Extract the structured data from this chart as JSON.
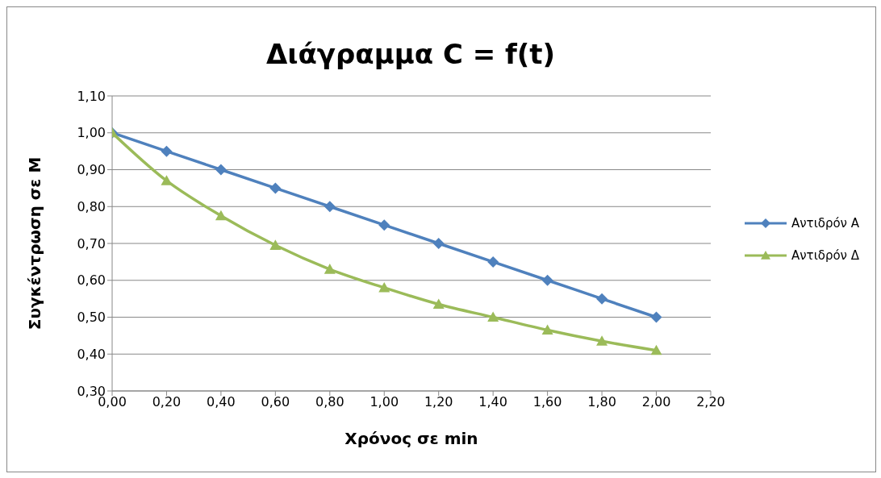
{
  "chart_data": {
    "type": "line",
    "title": "Διάγραμμα C = f(t)",
    "xlabel": "Χρόνος  σε min",
    "ylabel": "Συγκέντρωση  σε M",
    "x": [
      0,
      0.2,
      0.4,
      0.6,
      0.8,
      1.0,
      1.2,
      1.4,
      1.6,
      1.8,
      2.0
    ],
    "series": [
      {
        "name": "Αντιδρόν A",
        "color": "#4f81bd",
        "marker": "diamond",
        "values": [
          1.0,
          0.95,
          0.9,
          0.85,
          0.8,
          0.75,
          0.7,
          0.65,
          0.6,
          0.55,
          0.5
        ]
      },
      {
        "name": "Αντιδρόν Δ",
        "color": "#9bbb59",
        "marker": "triangle",
        "values": [
          1.0,
          0.87,
          0.775,
          0.695,
          0.63,
          0.58,
          0.535,
          0.5,
          0.465,
          0.435,
          0.41
        ]
      }
    ],
    "xlim": [
      0,
      2.2
    ],
    "xticks": [
      {
        "value": 0,
        "label": "0,00"
      },
      {
        "value": 0.2,
        "label": "0,20"
      },
      {
        "value": 0.4,
        "label": "0,40"
      },
      {
        "value": 0.6,
        "label": "0,60"
      },
      {
        "value": 0.8,
        "label": "0,80"
      },
      {
        "value": 1.0,
        "label": "1,00"
      },
      {
        "value": 1.2,
        "label": "1,20"
      },
      {
        "value": 1.4,
        "label": "1,40"
      },
      {
        "value": 1.6,
        "label": "1,60"
      },
      {
        "value": 1.8,
        "label": "1,80"
      },
      {
        "value": 2.0,
        "label": "2,00"
      },
      {
        "value": 2.2,
        "label": "2,20"
      }
    ],
    "ylim": [
      0.3,
      1.1
    ],
    "yticks": [
      {
        "value": 0.3,
        "label": "0,30"
      },
      {
        "value": 0.4,
        "label": "0,40"
      },
      {
        "value": 0.5,
        "label": "0,50"
      },
      {
        "value": 0.6,
        "label": "0,60"
      },
      {
        "value": 0.7,
        "label": "0,70"
      },
      {
        "value": 0.8,
        "label": "0,80"
      },
      {
        "value": 0.9,
        "label": "0,90"
      },
      {
        "value": 1.0,
        "label": "1,00"
      },
      {
        "value": 1.1,
        "label": "1,10"
      }
    ],
    "grid": "y",
    "legend": "right",
    "line_style": "solid"
  }
}
